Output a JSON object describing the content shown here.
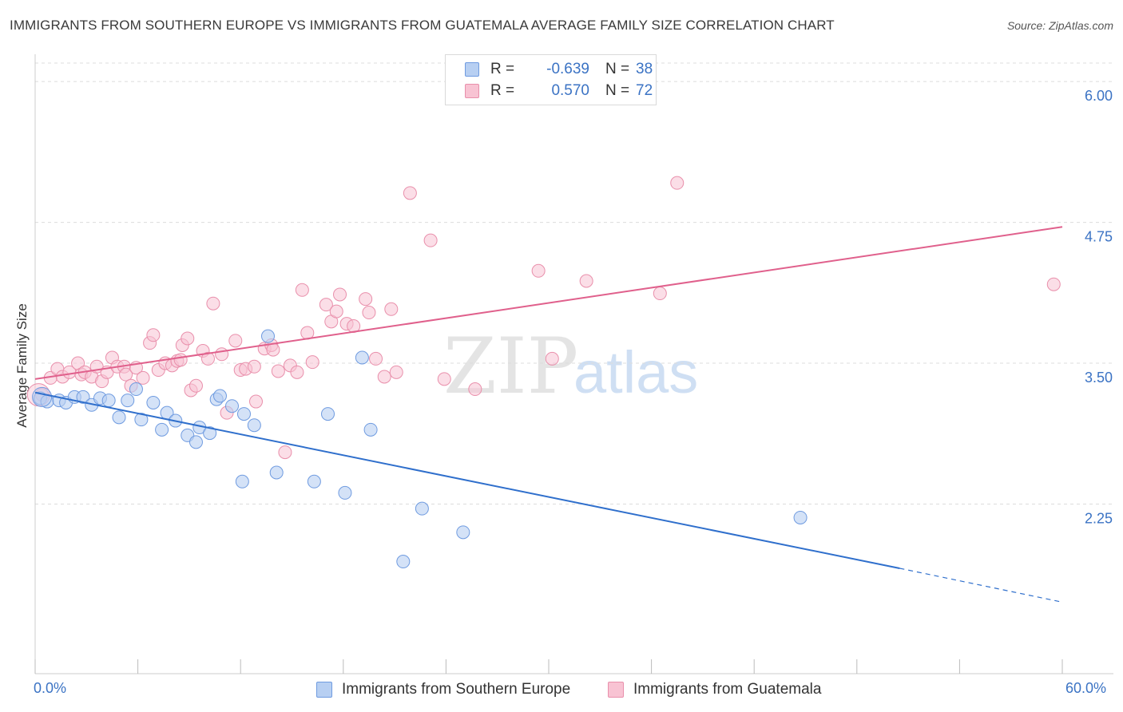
{
  "title": "IMMIGRANTS FROM SOUTHERN EUROPE VS IMMIGRANTS FROM GUATEMALA AVERAGE FAMILY SIZE CORRELATION CHART",
  "source": "Source: ZipAtlas.com",
  "watermark": {
    "zip": "ZIP",
    "atlas": "atlas"
  },
  "legend": {
    "rows": [
      {
        "r_label": "R =",
        "r_value": "-0.639",
        "n_label": "N =",
        "n_value": "38"
      },
      {
        "r_label": "R =",
        "r_value": "0.570",
        "n_label": "N =",
        "n_value": "72"
      }
    ]
  },
  "bottom_legend": {
    "series1": "Immigrants from Southern Europe",
    "series2": "Immigrants from Guatemala"
  },
  "colors": {
    "blue_fill": "#b7cff2",
    "blue_stroke": "#6f9be0",
    "blue_line": "#2f6fcc",
    "pink_fill": "#f8c3d3",
    "pink_stroke": "#e98fab",
    "pink_line": "#e0608c",
    "axis_text": "#3b73c4",
    "grid": "#dcdcdc"
  },
  "chart_data": {
    "type": "scatter",
    "title": "IMMIGRANTS FROM SOUTHERN EUROPE VS IMMIGRANTS FROM GUATEMALA AVERAGE FAMILY SIZE CORRELATION CHART",
    "xlabel": "",
    "ylabel": "Average Family Size",
    "xlim": [
      0,
      60
    ],
    "ylim": [
      1.0,
      6.1
    ],
    "x_tick_labels": [
      "0.0%",
      "60.0%"
    ],
    "y_ticks": [
      2.25,
      3.5,
      4.75,
      6.0
    ],
    "y_tick_labels": [
      "2.25",
      "3.50",
      "4.75",
      "6.00"
    ],
    "grid": "horizontal dashed",
    "legend_position": "top-center",
    "series": [
      {
        "name": "Immigrants from Southern Europe",
        "color": "#6f9be0",
        "R": -0.639,
        "N": 38,
        "trend": {
          "x0": 0,
          "y0": 3.24,
          "x1": 50.5,
          "y1": 1.68,
          "dashed_to_x": 60,
          "dashed_to_y": 1.38
        },
        "points": [
          [
            0.3,
            3.19
          ],
          [
            0.7,
            3.16
          ],
          [
            1.4,
            3.17
          ],
          [
            1.8,
            3.15
          ],
          [
            2.3,
            3.2
          ],
          [
            2.8,
            3.2
          ],
          [
            3.3,
            3.13
          ],
          [
            3.8,
            3.19
          ],
          [
            4.3,
            3.17
          ],
          [
            4.9,
            3.02
          ],
          [
            5.4,
            3.17
          ],
          [
            5.9,
            3.27
          ],
          [
            6.2,
            3.0
          ],
          [
            6.9,
            3.15
          ],
          [
            7.4,
            2.91
          ],
          [
            7.7,
            3.06
          ],
          [
            8.2,
            2.99
          ],
          [
            8.9,
            2.86
          ],
          [
            9.4,
            2.8
          ],
          [
            9.6,
            2.93
          ],
          [
            10.2,
            2.88
          ],
          [
            10.6,
            3.18
          ],
          [
            10.8,
            3.21
          ],
          [
            11.5,
            3.12
          ],
          [
            12.2,
            3.05
          ],
          [
            12.8,
            2.95
          ],
          [
            13.6,
            3.74
          ],
          [
            14.1,
            2.53
          ],
          [
            12.1,
            2.45
          ],
          [
            16.3,
            2.45
          ],
          [
            17.1,
            3.05
          ],
          [
            18.1,
            2.35
          ],
          [
            19.1,
            3.55
          ],
          [
            19.6,
            2.91
          ],
          [
            21.5,
            1.74
          ],
          [
            22.6,
            2.21
          ],
          [
            25.0,
            2.0
          ],
          [
            44.7,
            2.13
          ]
        ]
      },
      {
        "name": "Immigrants from Guatemala",
        "color": "#e98fab",
        "R": 0.57,
        "N": 72,
        "trend": {
          "x0": 0,
          "y0": 3.36,
          "x1": 60,
          "y1": 4.71
        },
        "points": [
          [
            0.4,
            3.22
          ],
          [
            0.9,
            3.37
          ],
          [
            1.3,
            3.45
          ],
          [
            1.6,
            3.38
          ],
          [
            2.0,
            3.42
          ],
          [
            2.5,
            3.5
          ],
          [
            2.7,
            3.4
          ],
          [
            2.9,
            3.42
          ],
          [
            3.3,
            3.38
          ],
          [
            3.6,
            3.47
          ],
          [
            3.9,
            3.34
          ],
          [
            4.2,
            3.42
          ],
          [
            4.5,
            3.55
          ],
          [
            4.8,
            3.47
          ],
          [
            5.2,
            3.47
          ],
          [
            5.3,
            3.4
          ],
          [
            5.6,
            3.3
          ],
          [
            5.9,
            3.46
          ],
          [
            6.3,
            3.37
          ],
          [
            6.7,
            3.68
          ],
          [
            6.9,
            3.75
          ],
          [
            7.2,
            3.44
          ],
          [
            7.6,
            3.5
          ],
          [
            8.0,
            3.48
          ],
          [
            8.3,
            3.52
          ],
          [
            8.5,
            3.53
          ],
          [
            8.6,
            3.66
          ],
          [
            8.9,
            3.72
          ],
          [
            9.1,
            3.26
          ],
          [
            9.4,
            3.3
          ],
          [
            9.8,
            3.61
          ],
          [
            10.1,
            3.54
          ],
          [
            10.4,
            4.03
          ],
          [
            10.9,
            3.58
          ],
          [
            11.2,
            3.06
          ],
          [
            11.7,
            3.7
          ],
          [
            12.0,
            3.44
          ],
          [
            12.3,
            3.45
          ],
          [
            12.8,
            3.47
          ],
          [
            12.9,
            3.16
          ],
          [
            13.4,
            3.63
          ],
          [
            13.8,
            3.66
          ],
          [
            14.2,
            3.43
          ],
          [
            14.6,
            2.71
          ],
          [
            14.9,
            3.48
          ],
          [
            15.3,
            3.42
          ],
          [
            15.6,
            4.15
          ],
          [
            15.9,
            3.77
          ],
          [
            16.2,
            3.51
          ],
          [
            17.0,
            4.02
          ],
          [
            17.3,
            3.87
          ],
          [
            17.6,
            3.96
          ],
          [
            17.8,
            4.11
          ],
          [
            18.2,
            3.85
          ],
          [
            18.6,
            3.83
          ],
          [
            19.3,
            4.07
          ],
          [
            19.5,
            3.95
          ],
          [
            19.9,
            3.54
          ],
          [
            20.4,
            3.38
          ],
          [
            20.8,
            3.98
          ],
          [
            21.1,
            3.42
          ],
          [
            21.9,
            5.01
          ],
          [
            23.1,
            4.59
          ],
          [
            23.9,
            3.36
          ],
          [
            25.7,
            3.27
          ],
          [
            29.4,
            4.32
          ],
          [
            30.2,
            3.54
          ],
          [
            32.2,
            4.23
          ],
          [
            36.5,
            4.12
          ],
          [
            37.5,
            5.1
          ],
          [
            59.5,
            4.2
          ],
          [
            13.9,
            3.62
          ]
        ]
      }
    ]
  }
}
